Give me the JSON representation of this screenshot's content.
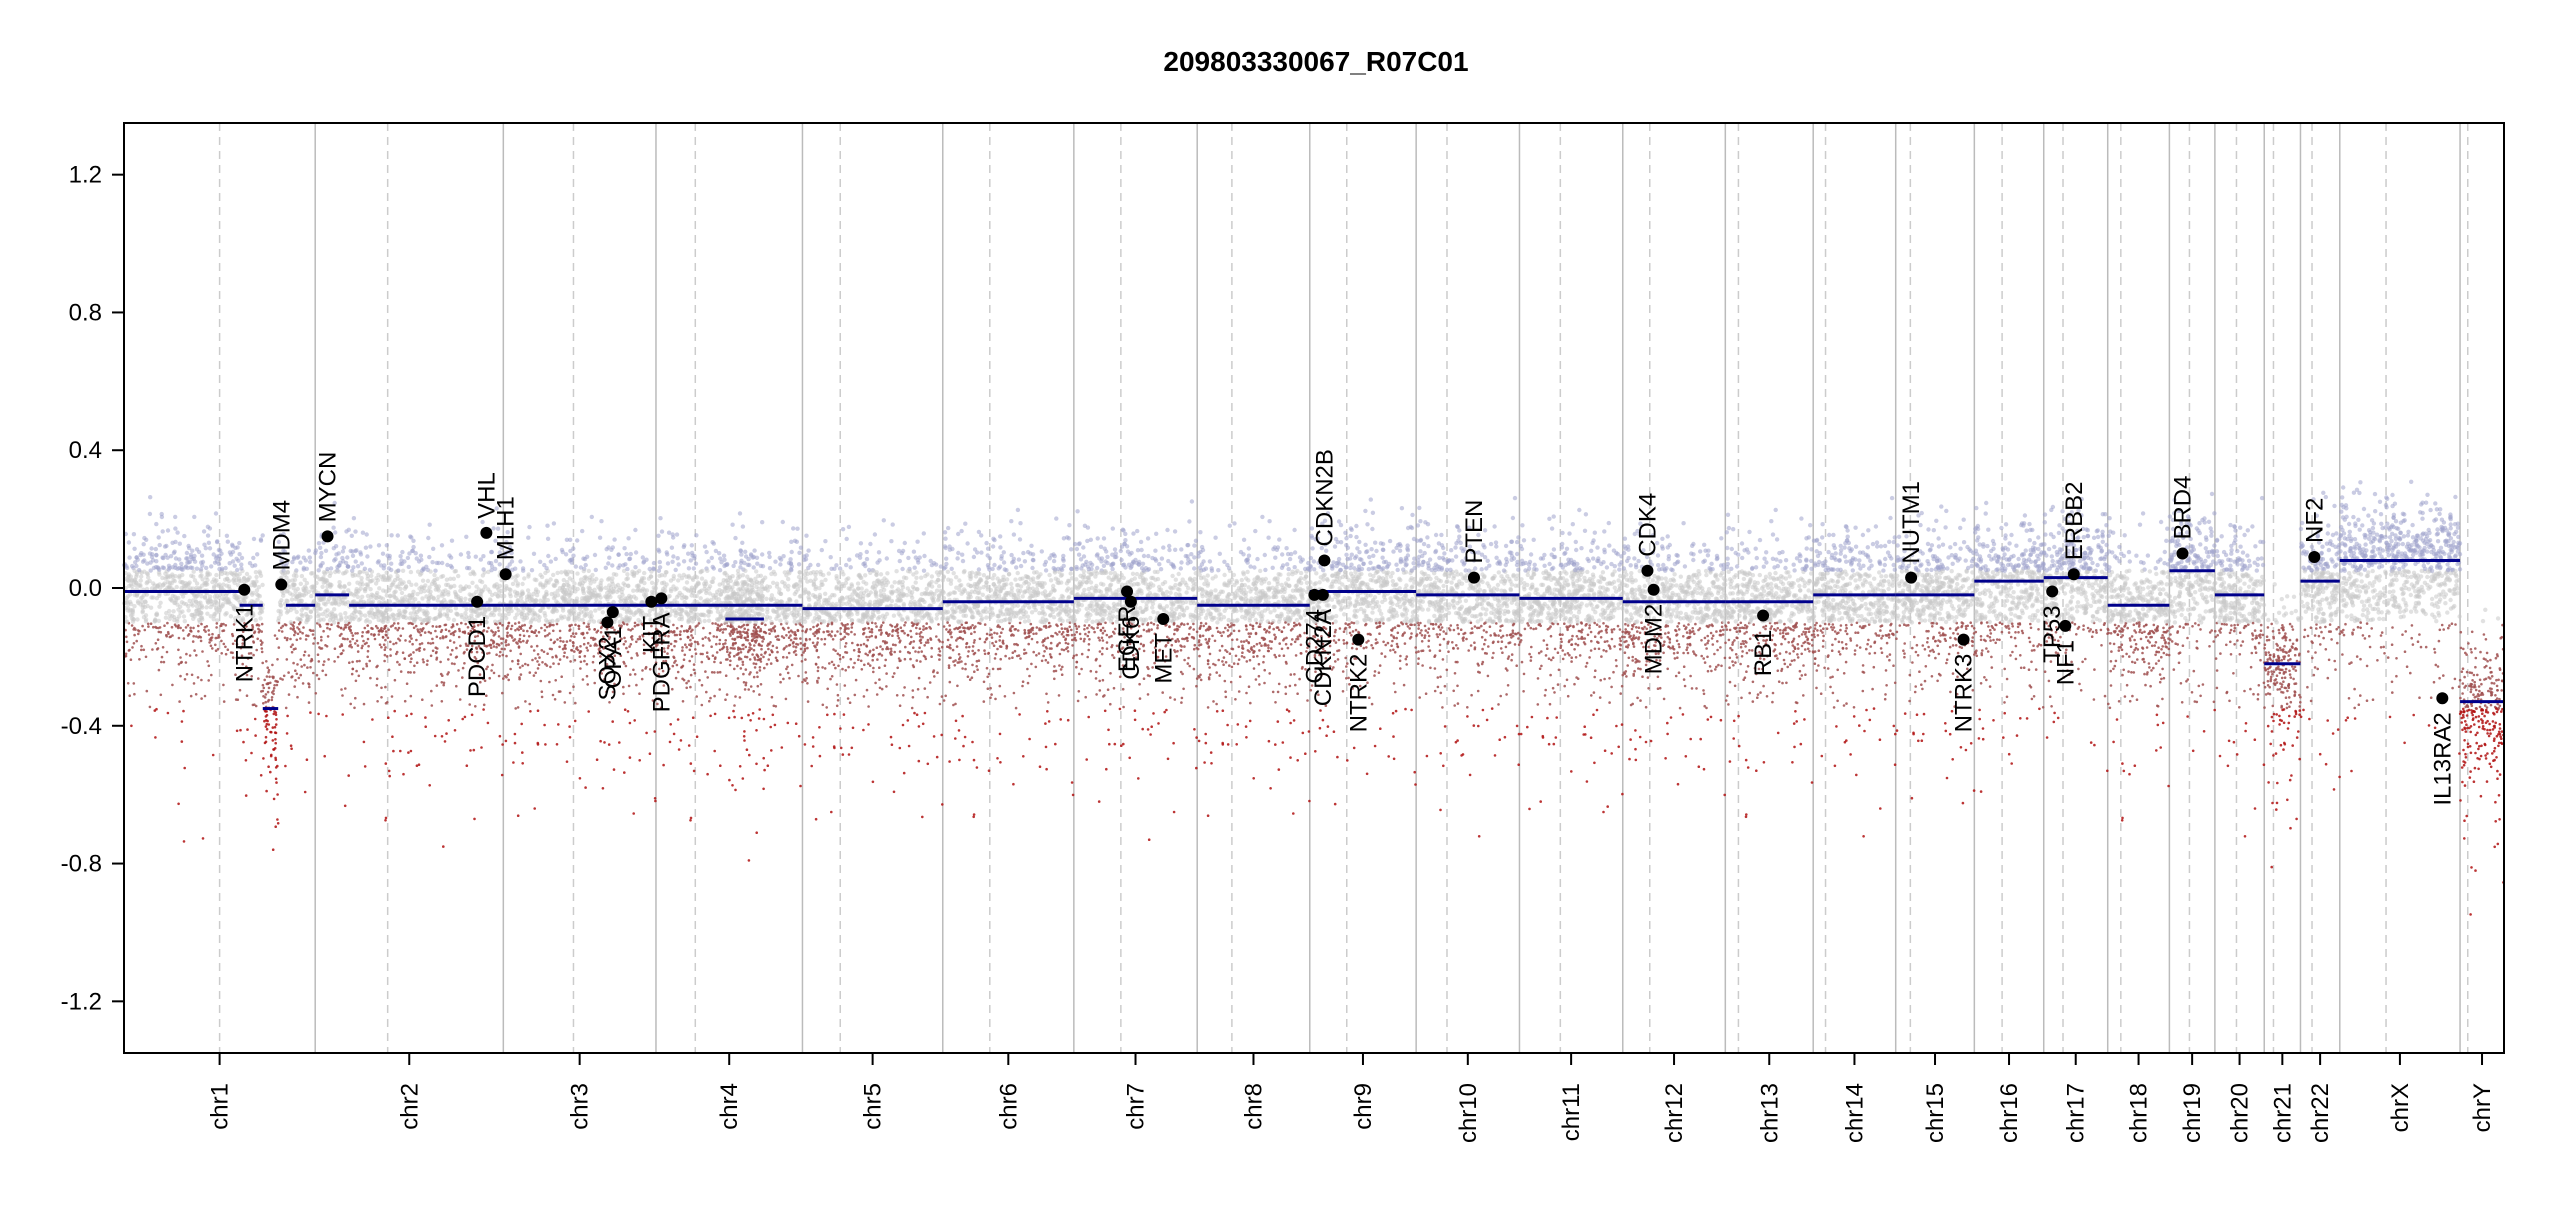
{
  "chart_data": {
    "type": "scatter",
    "title": "209803330067_R07C01",
    "xlabel": "",
    "ylabel": "",
    "ylim": [
      -1.35,
      1.35
    ],
    "y_ticks": [
      "1.2",
      "0.8",
      "0.4",
      "0.0",
      "-0.4",
      "-0.8",
      "-1.2"
    ],
    "y_tick_values": [
      1.2,
      0.8,
      0.4,
      0.0,
      -0.4,
      -0.8,
      -1.2
    ],
    "grid": false,
    "legend": "none",
    "colors": {
      "gain_points": "#9fa3cc",
      "neutral_points": "#c8c8c8",
      "loss_points": "#a05050",
      "deep_loss_points": "#b01010",
      "segments": "#00008b",
      "gene_markers": "#000000",
      "chrom_boundary": "#bbbbbb",
      "centromere": "#cccccc"
    },
    "chromosomes": [
      {
        "label": "chr1",
        "start": 0,
        "end": 248,
        "centromere": 124
      },
      {
        "label": "chr2",
        "start": 248,
        "end": 492,
        "centromere": 342
      },
      {
        "label": "chr3",
        "start": 492,
        "end": 690,
        "centromere": 583
      },
      {
        "label": "chr4",
        "start": 690,
        "end": 880,
        "centromere": 741
      },
      {
        "label": "chr5",
        "start": 880,
        "end": 1062,
        "centromere": 929
      },
      {
        "label": "chr6",
        "start": 1062,
        "end": 1232,
        "centromere": 1123
      },
      {
        "label": "chr7",
        "start": 1232,
        "end": 1392,
        "centromere": 1293
      },
      {
        "label": "chr8",
        "start": 1392,
        "end": 1538,
        "centromere": 1437
      },
      {
        "label": "chr9",
        "start": 1538,
        "end": 1676,
        "centromere": 1586
      },
      {
        "label": "chr10",
        "start": 1676,
        "end": 1810,
        "centromere": 1716
      },
      {
        "label": "chr11",
        "start": 1810,
        "end": 1944,
        "centromere": 1863
      },
      {
        "label": "chr12",
        "start": 1944,
        "end": 2077,
        "centromere": 1979
      },
      {
        "label": "chr13",
        "start": 2077,
        "end": 2191,
        "centromere": 2094
      },
      {
        "label": "chr14",
        "start": 2191,
        "end": 2298,
        "centromere": 2207
      },
      {
        "label": "chr15",
        "start": 2298,
        "end": 2400,
        "centromere": 2317
      },
      {
        "label": "chr16",
        "start": 2400,
        "end": 2490,
        "centromere": 2436
      },
      {
        "label": "chr17",
        "start": 2490,
        "end": 2573,
        "centromere": 2515
      },
      {
        "label": "chr18",
        "start": 2573,
        "end": 2653,
        "centromere": 2590
      },
      {
        "label": "chr19",
        "start": 2653,
        "end": 2712,
        "centromere": 2679
      },
      {
        "label": "chr20",
        "start": 2712,
        "end": 2776,
        "centromere": 2740
      },
      {
        "label": "chr21",
        "start": 2776,
        "end": 2823,
        "centromere": 2788
      },
      {
        "label": "chr22",
        "start": 2823,
        "end": 2874,
        "centromere": 2838
      },
      {
        "label": "chrX",
        "start": 2874,
        "end": 3030,
        "centromere": 2934
      },
      {
        "label": "chrY",
        "start": 3030,
        "end": 3087,
        "centromere": 3040
      }
    ],
    "segments": [
      {
        "chr": "chr1",
        "x0": 0,
        "x1": 150,
        "y": -0.01
      },
      {
        "chr": "chr1",
        "x0": 150,
        "x1": 180,
        "y": -0.05
      },
      {
        "chr": "chr1",
        "x0": 180,
        "x1": 200,
        "y": -0.35
      },
      {
        "chr": "chr1",
        "x0": 200,
        "x1": 210,
        "y": 0.01
      },
      {
        "chr": "chr1",
        "x0": 210,
        "x1": 248,
        "y": -0.05
      },
      {
        "chr": "chr2",
        "x0": 248,
        "x1": 292,
        "y": -0.02
      },
      {
        "chr": "chr2",
        "x0": 292,
        "x1": 492,
        "y": -0.05
      },
      {
        "chr": "chr3",
        "x0": 492,
        "x1": 690,
        "y": -0.05
      },
      {
        "chr": "chr4",
        "x0": 690,
        "x1": 880,
        "y": -0.05
      },
      {
        "chr": "chr4",
        "x0": 780,
        "x1": 830,
        "y": -0.09
      },
      {
        "chr": "chr5",
        "x0": 880,
        "x1": 1062,
        "y": -0.06
      },
      {
        "chr": "chr6",
        "x0": 1062,
        "x1": 1232,
        "y": -0.04
      },
      {
        "chr": "chr7",
        "x0": 1232,
        "x1": 1392,
        "y": -0.03
      },
      {
        "chr": "chr8",
        "x0": 1392,
        "x1": 1538,
        "y": -0.05
      },
      {
        "chr": "chr9",
        "x0": 1538,
        "x1": 1676,
        "y": -0.01
      },
      {
        "chr": "chr10",
        "x0": 1676,
        "x1": 1810,
        "y": -0.02
      },
      {
        "chr": "chr11",
        "x0": 1810,
        "x1": 1944,
        "y": -0.03
      },
      {
        "chr": "chr12",
        "x0": 1944,
        "x1": 2077,
        "y": -0.04
      },
      {
        "chr": "chr13",
        "x0": 2077,
        "x1": 2191,
        "y": -0.04
      },
      {
        "chr": "chr14",
        "x0": 2191,
        "x1": 2298,
        "y": -0.02
      },
      {
        "chr": "chr15",
        "x0": 2298,
        "x1": 2400,
        "y": -0.02
      },
      {
        "chr": "chr16",
        "x0": 2400,
        "x1": 2490,
        "y": 0.02
      },
      {
        "chr": "chr17",
        "x0": 2490,
        "x1": 2573,
        "y": 0.03
      },
      {
        "chr": "chr18",
        "x0": 2573,
        "x1": 2653,
        "y": -0.05
      },
      {
        "chr": "chr19",
        "x0": 2653,
        "x1": 2712,
        "y": 0.05
      },
      {
        "chr": "chr20",
        "x0": 2712,
        "x1": 2776,
        "y": -0.02
      },
      {
        "chr": "chr21",
        "x0": 2776,
        "x1": 2823,
        "y": -0.22
      },
      {
        "chr": "chr22",
        "x0": 2823,
        "x1": 2874,
        "y": 0.02
      },
      {
        "chr": "chrX",
        "x0": 2874,
        "x1": 3030,
        "y": 0.08
      },
      {
        "chr": "chrY",
        "x0": 3030,
        "x1": 3087,
        "y": -0.33
      }
    ],
    "genes": [
      {
        "name": "NTRK1",
        "x": 156,
        "y": -0.005,
        "label_side": "below"
      },
      {
        "name": "MDM4",
        "x": 204,
        "y": 0.01,
        "label_side": "above"
      },
      {
        "name": "MYCN",
        "x": 264,
        "y": 0.15,
        "label_side": "above"
      },
      {
        "name": "PDCD1",
        "x": 458,
        "y": -0.04,
        "label_side": "below"
      },
      {
        "name": "VHL",
        "x": 470,
        "y": 0.16,
        "label_side": "above"
      },
      {
        "name": "MLH1",
        "x": 495,
        "y": 0.04,
        "label_side": "above"
      },
      {
        "name": "SOX2",
        "x": 627,
        "y": -0.1,
        "label_side": "below"
      },
      {
        "name": "OPA1",
        "x": 634,
        "y": -0.07,
        "label_side": "below"
      },
      {
        "name": "PDGFRA",
        "x": 697,
        "y": -0.03,
        "label_side": "below"
      },
      {
        "name": "KIT",
        "x": 684,
        "y": -0.04,
        "label_side": "below"
      },
      {
        "name": "EGFR",
        "x": 1301,
        "y": -0.01,
        "label_side": "below"
      },
      {
        "name": "CDK6",
        "x": 1306,
        "y": -0.04,
        "label_side": "below"
      },
      {
        "name": "MET",
        "x": 1348,
        "y": -0.09,
        "label_side": "below"
      },
      {
        "name": "CD274",
        "x": 1544,
        "y": -0.02,
        "label_side": "below"
      },
      {
        "name": "CDKN2A",
        "x": 1555,
        "y": -0.02,
        "label_side": "below"
      },
      {
        "name": "CDKN2B",
        "x": 1557,
        "y": 0.08,
        "label_side": "above"
      },
      {
        "name": "NTRK2",
        "x": 1601,
        "y": -0.15,
        "label_side": "below"
      },
      {
        "name": "PTEN",
        "x": 1751,
        "y": 0.03,
        "label_side": "above"
      },
      {
        "name": "CDK4",
        "x": 1976,
        "y": 0.05,
        "label_side": "above"
      },
      {
        "name": "MDM2",
        "x": 1984,
        "y": -0.005,
        "label_side": "below"
      },
      {
        "name": "RB1",
        "x": 2126,
        "y": -0.08,
        "label_side": "below"
      },
      {
        "name": "NUTM1",
        "x": 2318,
        "y": 0.03,
        "label_side": "above"
      },
      {
        "name": "NTRK3",
        "x": 2386,
        "y": -0.15,
        "label_side": "below"
      },
      {
        "name": "TP53",
        "x": 2501,
        "y": -0.01,
        "label_side": "below"
      },
      {
        "name": "NF1",
        "x": 2518,
        "y": -0.11,
        "label_side": "below"
      },
      {
        "name": "ERBB2",
        "x": 2529,
        "y": 0.04,
        "label_side": "above"
      },
      {
        "name": "BRD4",
        "x": 2670,
        "y": 0.1,
        "label_side": "above"
      },
      {
        "name": "NF2",
        "x": 2841,
        "y": 0.09,
        "label_side": "above"
      },
      {
        "name": "IL13RA2",
        "x": 3007,
        "y": -0.32,
        "label_side": "below"
      }
    ]
  }
}
